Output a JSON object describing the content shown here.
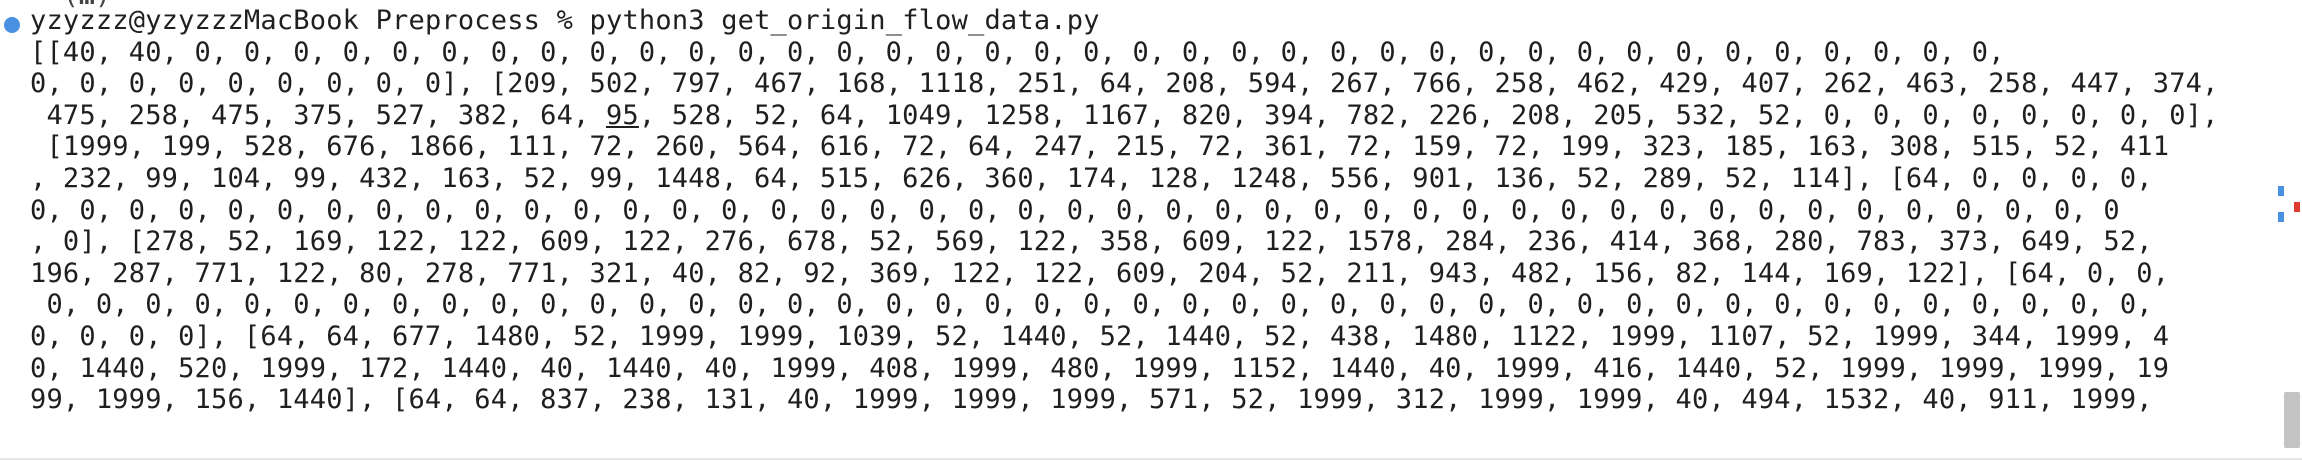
{
  "terminal": {
    "previous_line": "~ (…)",
    "prompt": {
      "user_host": "yzyzzz@yzyzzzMacBook",
      "directory": "Preprocess",
      "symbol": "%",
      "command": "python3 get_origin_flow_data.py"
    },
    "output_lines": [
      {
        "a": "[[40, 40, 0, 0, 0, 0, 0, 0, 0, 0, 0, 0, 0, 0, 0, 0, 0, 0, 0, 0, 0, 0, 0, 0, 0, 0, 0, 0, 0, 0, 0, 0, 0, 0, 0, 0, 0, 0, 0,"
      },
      {
        "a": "0, 0, 0, 0, 0, 0, 0, 0, 0], [209, 502, 797, 467, 168, 1118, 251, 64, 208, 594, 267, 766, 258, 462, 429, 407, 262, 463, 258, 447, 374,"
      },
      {
        "a": " 475, 258, 475, 375, 527, 382, 64, ",
        "u": "95",
        "b": ", 528, 52, 64, 1049, 1258, 1167, 820, 394, 782, 226, 208, 205, 532, 52, 0, 0, 0, 0, 0, 0, 0, 0],"
      },
      {
        "a": " [1999, 199, 528, 676, 1866, 111, 72, 260, 564, 616, 72, 64, 247, 215, 72, 361, 72, 159, 72, 199, 323, 185, 163, 308, 515, 52, 411"
      },
      {
        "a": ", 232, 99, 104, 99, 432, 163, 52, 99, 1448, 64, 515, 626, 360, 174, 128, 1248, 556, 901, 136, 52, 289, 52, 114], [64, 0, 0, 0, 0,"
      },
      {
        "a": "0, 0, 0, 0, 0, 0, 0, 0, 0, 0, 0, 0, 0, 0, 0, 0, 0, 0, 0, 0, 0, 0, 0, 0, 0, 0, 0, 0, 0, 0, 0, 0, 0, 0, 0, 0, 0, 0, 0, 0, 0, 0, 0"
      },
      {
        "a": ", 0], [278, 52, 169, 122, 122, 609, 122, 276, 678, 52, 569, 122, 358, 609, 122, 1578, 284, 236, 414, 368, 280, 783, 373, 649, 52,"
      },
      {
        "a": "196, 287, 771, 122, 80, 278, 771, 321, 40, 82, 92, 369, 122, 122, 609, 204, 52, 211, 943, 482, 156, 82, 144, 169, 122], [64, 0, 0,"
      },
      {
        "a": " 0, 0, 0, 0, 0, 0, 0, 0, 0, 0, 0, 0, 0, 0, 0, 0, 0, 0, 0, 0, 0, 0, 0, 0, 0, 0, 0, 0, 0, 0, 0, 0, 0, 0, 0, 0, 0, 0, 0, 0, 0, 0, 0,"
      },
      {
        "a": "0, 0, 0, 0], [64, 64, 677, 1480, 52, 1999, 1999, 1039, 52, 1440, 52, 1440, 52, 438, 1480, 1122, 1999, 1107, 52, 1999, 344, 1999, 4"
      },
      {
        "a": "0, 1440, 520, 1999, 172, 1440, 40, 1440, 40, 1999, 408, 1999, 480, 1999, 1152, 1440, 40, 1999, 416, 1440, 52, 1999, 1999, 1999, 19"
      },
      {
        "a": "99, 1999, 156, 1440], [64, 64, 837, 238, 131, 40, 1999, 1999, 1999, 571, 52, 1999, 312, 1999, 1999, 40, 494, 1532, 40, 911, 1999,"
      }
    ]
  },
  "colors": {
    "marker_blue": "#4a90e2",
    "mark_red": "#e03a2f",
    "text": "#1f1f1f"
  }
}
